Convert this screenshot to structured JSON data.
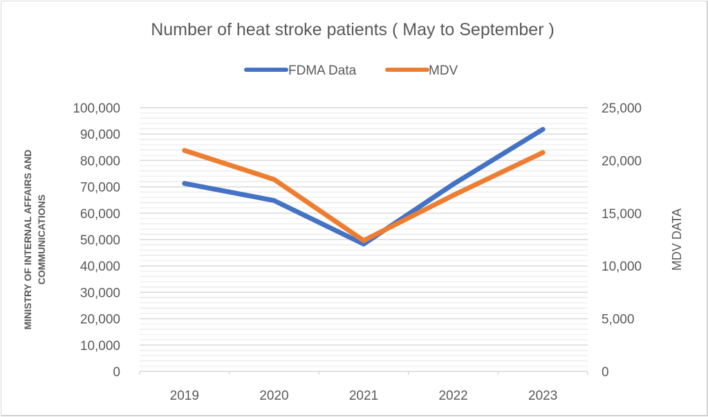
{
  "chart_data": {
    "type": "line",
    "title": "Number of heat stroke patients ( May to September )",
    "categories": [
      "2019",
      "2020",
      "2021",
      "2022",
      "2023"
    ],
    "series": [
      {
        "name": "FDMA Data",
        "axis": "left",
        "color": "#4472C4",
        "values": [
          71300,
          64800,
          48300,
          71000,
          91800
        ]
      },
      {
        "name": "MDV",
        "axis": "right",
        "color": "#ED7D31",
        "values": [
          20950,
          18200,
          12400,
          16700,
          20750
        ]
      }
    ],
    "ylabel_left": [
      "MINISTRY OF INTERNAL AFFAIRS AND",
      "COMMUNICATIONS"
    ],
    "ylabel_right": "MDV DATA",
    "ylim_left": [
      0,
      100000
    ],
    "ylim_right": [
      0,
      25000
    ],
    "yticks_left": [
      "0",
      "10,000",
      "20,000",
      "30,000",
      "40,000",
      "50,000",
      "60,000",
      "70,000",
      "80,000",
      "90,000",
      "100,000"
    ],
    "yticks_right": [
      "0",
      "5,000",
      "10,000",
      "15,000",
      "20,000",
      "25,000"
    ],
    "grid": true,
    "legend_position": "top-center"
  }
}
